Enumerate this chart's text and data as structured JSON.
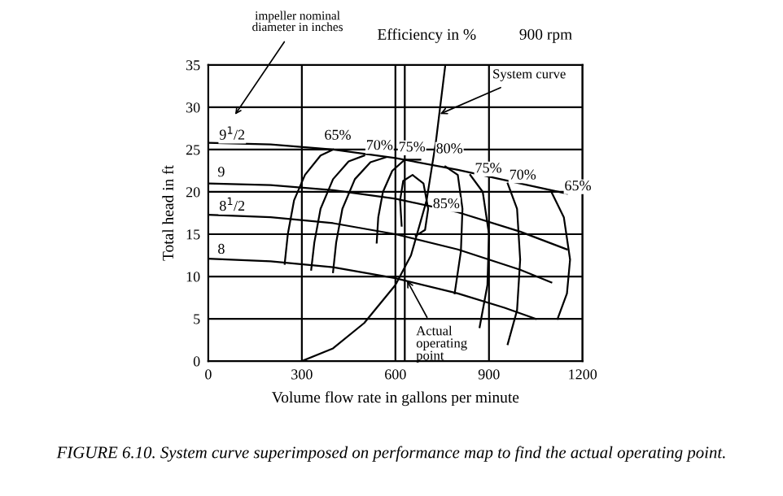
{
  "chart_data": {
    "type": "line",
    "xlabel": "Volume flow rate in gallons per minute",
    "ylabel": "Total head in ft",
    "xlim": [
      0,
      1200
    ],
    "xticks": [
      0,
      300,
      600,
      900,
      1200
    ],
    "ylim": [
      0,
      35
    ],
    "yticks": [
      0,
      5,
      10,
      15,
      20,
      25,
      30,
      35
    ],
    "grid": true,
    "marker": "none",
    "line_style": "solid",
    "ref_lines": [
      {
        "axis": "x",
        "value": 630,
        "label": null,
        "color": "#000000"
      }
    ],
    "series": [
      {
        "color": "#000000",
        "x": [
          0,
          200,
          400,
          600,
          800,
          1000,
          1150
        ],
        "values": [
          25.8,
          25.6,
          25.0,
          24.0,
          22.6,
          21.0,
          19.8
        ]
      },
      {
        "color": "#000000",
        "x": [
          0,
          200,
          400,
          600,
          800,
          1000,
          1150
        ],
        "values": [
          21.0,
          20.8,
          20.2,
          19.2,
          17.6,
          15.3,
          13.2
        ]
      },
      {
        "color": "#000000",
        "x": [
          0,
          200,
          400,
          600,
          800,
          1000,
          1100
        ],
        "values": [
          17.3,
          17.0,
          16.3,
          15.0,
          13.2,
          10.8,
          9.3
        ]
      },
      {
        "color": "#000000",
        "x": [
          0,
          200,
          400,
          600,
          800,
          950,
          1050
        ],
        "values": [
          12.1,
          11.8,
          11.1,
          9.8,
          8.0,
          6.3,
          5.0
        ]
      },
      {
        "color": "#000000",
        "x": [
          245,
          255,
          275,
          310,
          360,
          400
        ],
        "values": [
          11.5,
          15,
          19,
          22,
          24.3,
          25
        ]
      },
      {
        "color": "#000000",
        "x": [
          330,
          340,
          360,
          400,
          450,
          500
        ],
        "values": [
          10.8,
          14,
          18,
          21.5,
          23.6,
          24.3
        ]
      },
      {
        "color": "#000000",
        "x": [
          400,
          410,
          430,
          470,
          520,
          570
        ],
        "values": [
          10.5,
          14,
          18,
          21.5,
          23.5,
          24.1
        ]
      },
      {
        "color": "#000000",
        "x": [
          540,
          545,
          560,
          590,
          630,
          680
        ],
        "values": [
          14,
          17,
          20,
          22.5,
          23.8,
          23.8
        ]
      },
      {
        "color": "#000000",
        "x": [
          620,
          615,
          625,
          655,
          690,
          705,
          695,
          665
        ],
        "values": [
          16,
          19,
          21.3,
          22,
          21,
          18,
          15.5,
          14.8
        ]
      },
      {
        "color": "#000000",
        "x": [
          760,
          800,
          815,
          810,
          790
        ],
        "values": [
          23,
          22,
          18,
          13,
          8
        ]
      },
      {
        "color": "#000000",
        "x": [
          840,
          880,
          900,
          895,
          870
        ],
        "values": [
          22,
          20,
          15,
          9,
          4
        ]
      },
      {
        "color": "#000000",
        "x": [
          960,
          990,
          1000,
          990,
          960
        ],
        "values": [
          21,
          18,
          12,
          6,
          2
        ]
      },
      {
        "color": "#000000",
        "x": [
          1100,
          1140,
          1160,
          1150,
          1120
        ],
        "values": [
          20,
          17,
          12,
          8,
          5
        ]
      },
      {
        "color": "#000000",
        "x": [
          300,
          400,
          500,
          600,
          650,
          700,
          730,
          760
        ],
        "values": [
          0,
          1.5,
          4.5,
          9,
          12.5,
          19,
          26,
          35
        ]
      }
    ],
    "annotations": [
      "impeller nominal\ndiameter in inches",
      "Efficiency in %",
      "900 rpm",
      {
        "text": "System curve",
        "x": 730,
        "y": 29
      },
      {
        "text": "Actual\noperating\npoint",
        "x": 630,
        "y": 10
      },
      "65%",
      {
        "text": "70%",
        "x": 506,
        "y": 25.4
      },
      {
        "text": "75%",
        "x": 610,
        "y": 25.2
      },
      {
        "text": "80%",
        "x": 730,
        "y": 25
      },
      {
        "text": "85%",
        "x": 720,
        "y": 18.5
      },
      {
        "text": "75%",
        "x": 855,
        "y": 22.7
      },
      {
        "text": "70%",
        "x": 965,
        "y": 21.9
      },
      {
        "text": "65%",
        "x": 1142,
        "y": 20.6
      },
      {
        "text": "9$^{1}$/2",
        "x": 35,
        "y": 26.6
      },
      "9",
      {
        "text": "8$^{1}$/2",
        "x": 35,
        "y": 18.2
      },
      "8",
      "FIGURE 6.10. System curve superimposed on performance map to find the actual operating point."
    ]
  }
}
